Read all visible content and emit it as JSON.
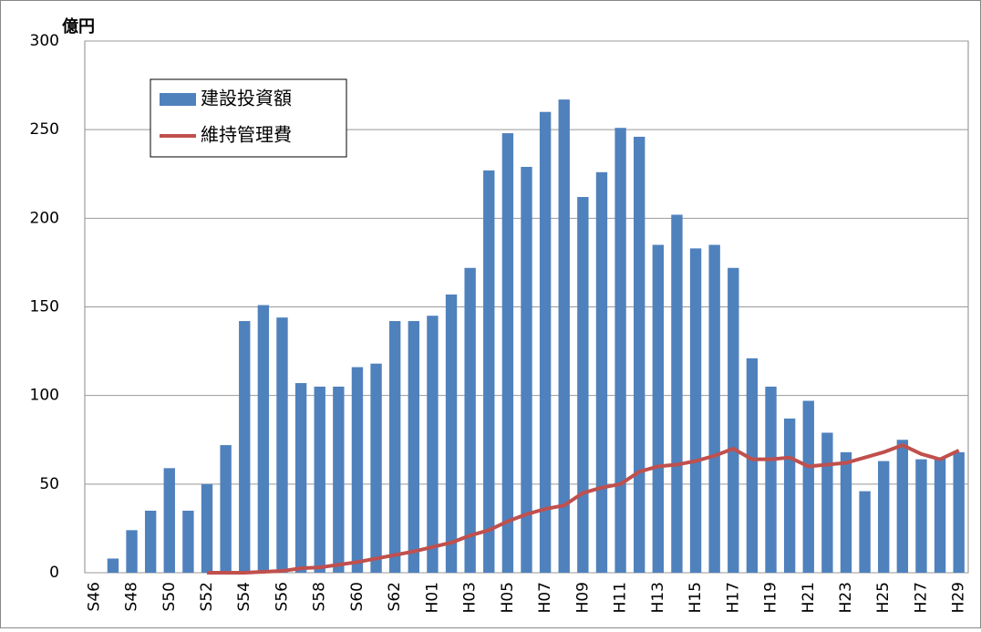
{
  "chart_data": {
    "type": "bar_line",
    "y_label": "億円",
    "categories": [
      "S46",
      null,
      "S48",
      null,
      "S50",
      null,
      "S52",
      null,
      "S54",
      null,
      "S56",
      null,
      "S58",
      null,
      "S60",
      null,
      "S62",
      null,
      "H01",
      null,
      "H03",
      null,
      "H05",
      null,
      "H07",
      null,
      "H09",
      null,
      "H11",
      null,
      "H13",
      null,
      "H15",
      null,
      "H17",
      null,
      "H19",
      null,
      "H21",
      null,
      "H23",
      null,
      "H25",
      null,
      "H27",
      null,
      "H29"
    ],
    "series": [
      {
        "name": "建設投資額",
        "type": "bar",
        "color": "#4f81bd",
        "values": [
          null,
          8,
          24,
          35,
          59,
          35,
          50,
          72,
          142,
          151,
          144,
          107,
          105,
          105,
          116,
          118,
          142,
          142,
          145,
          157,
          172,
          227,
          248,
          229,
          260,
          267,
          212,
          226,
          251,
          246,
          185,
          202,
          183,
          185,
          172,
          121,
          105,
          87,
          97,
          79,
          68,
          46,
          63,
          75,
          64,
          65,
          68
        ]
      },
      {
        "name": "維持管理費",
        "type": "line",
        "color": "#c0504d",
        "values": [
          null,
          null,
          null,
          null,
          null,
          null,
          0,
          0,
          0,
          0.5,
          1,
          2.5,
          3,
          4.5,
          6,
          8,
          10,
          12,
          14.5,
          17,
          21,
          24,
          29,
          33,
          36,
          38,
          45,
          48,
          50,
          57,
          60,
          61,
          63,
          66,
          70,
          64,
          64,
          65,
          60,
          61,
          62,
          65,
          68,
          72,
          67,
          64,
          69
        ]
      }
    ],
    "ylim": [
      0,
      300
    ],
    "yticks": [
      0,
      50,
      100,
      150,
      200,
      250,
      300
    ],
    "grid": true,
    "legend": "upper left"
  }
}
